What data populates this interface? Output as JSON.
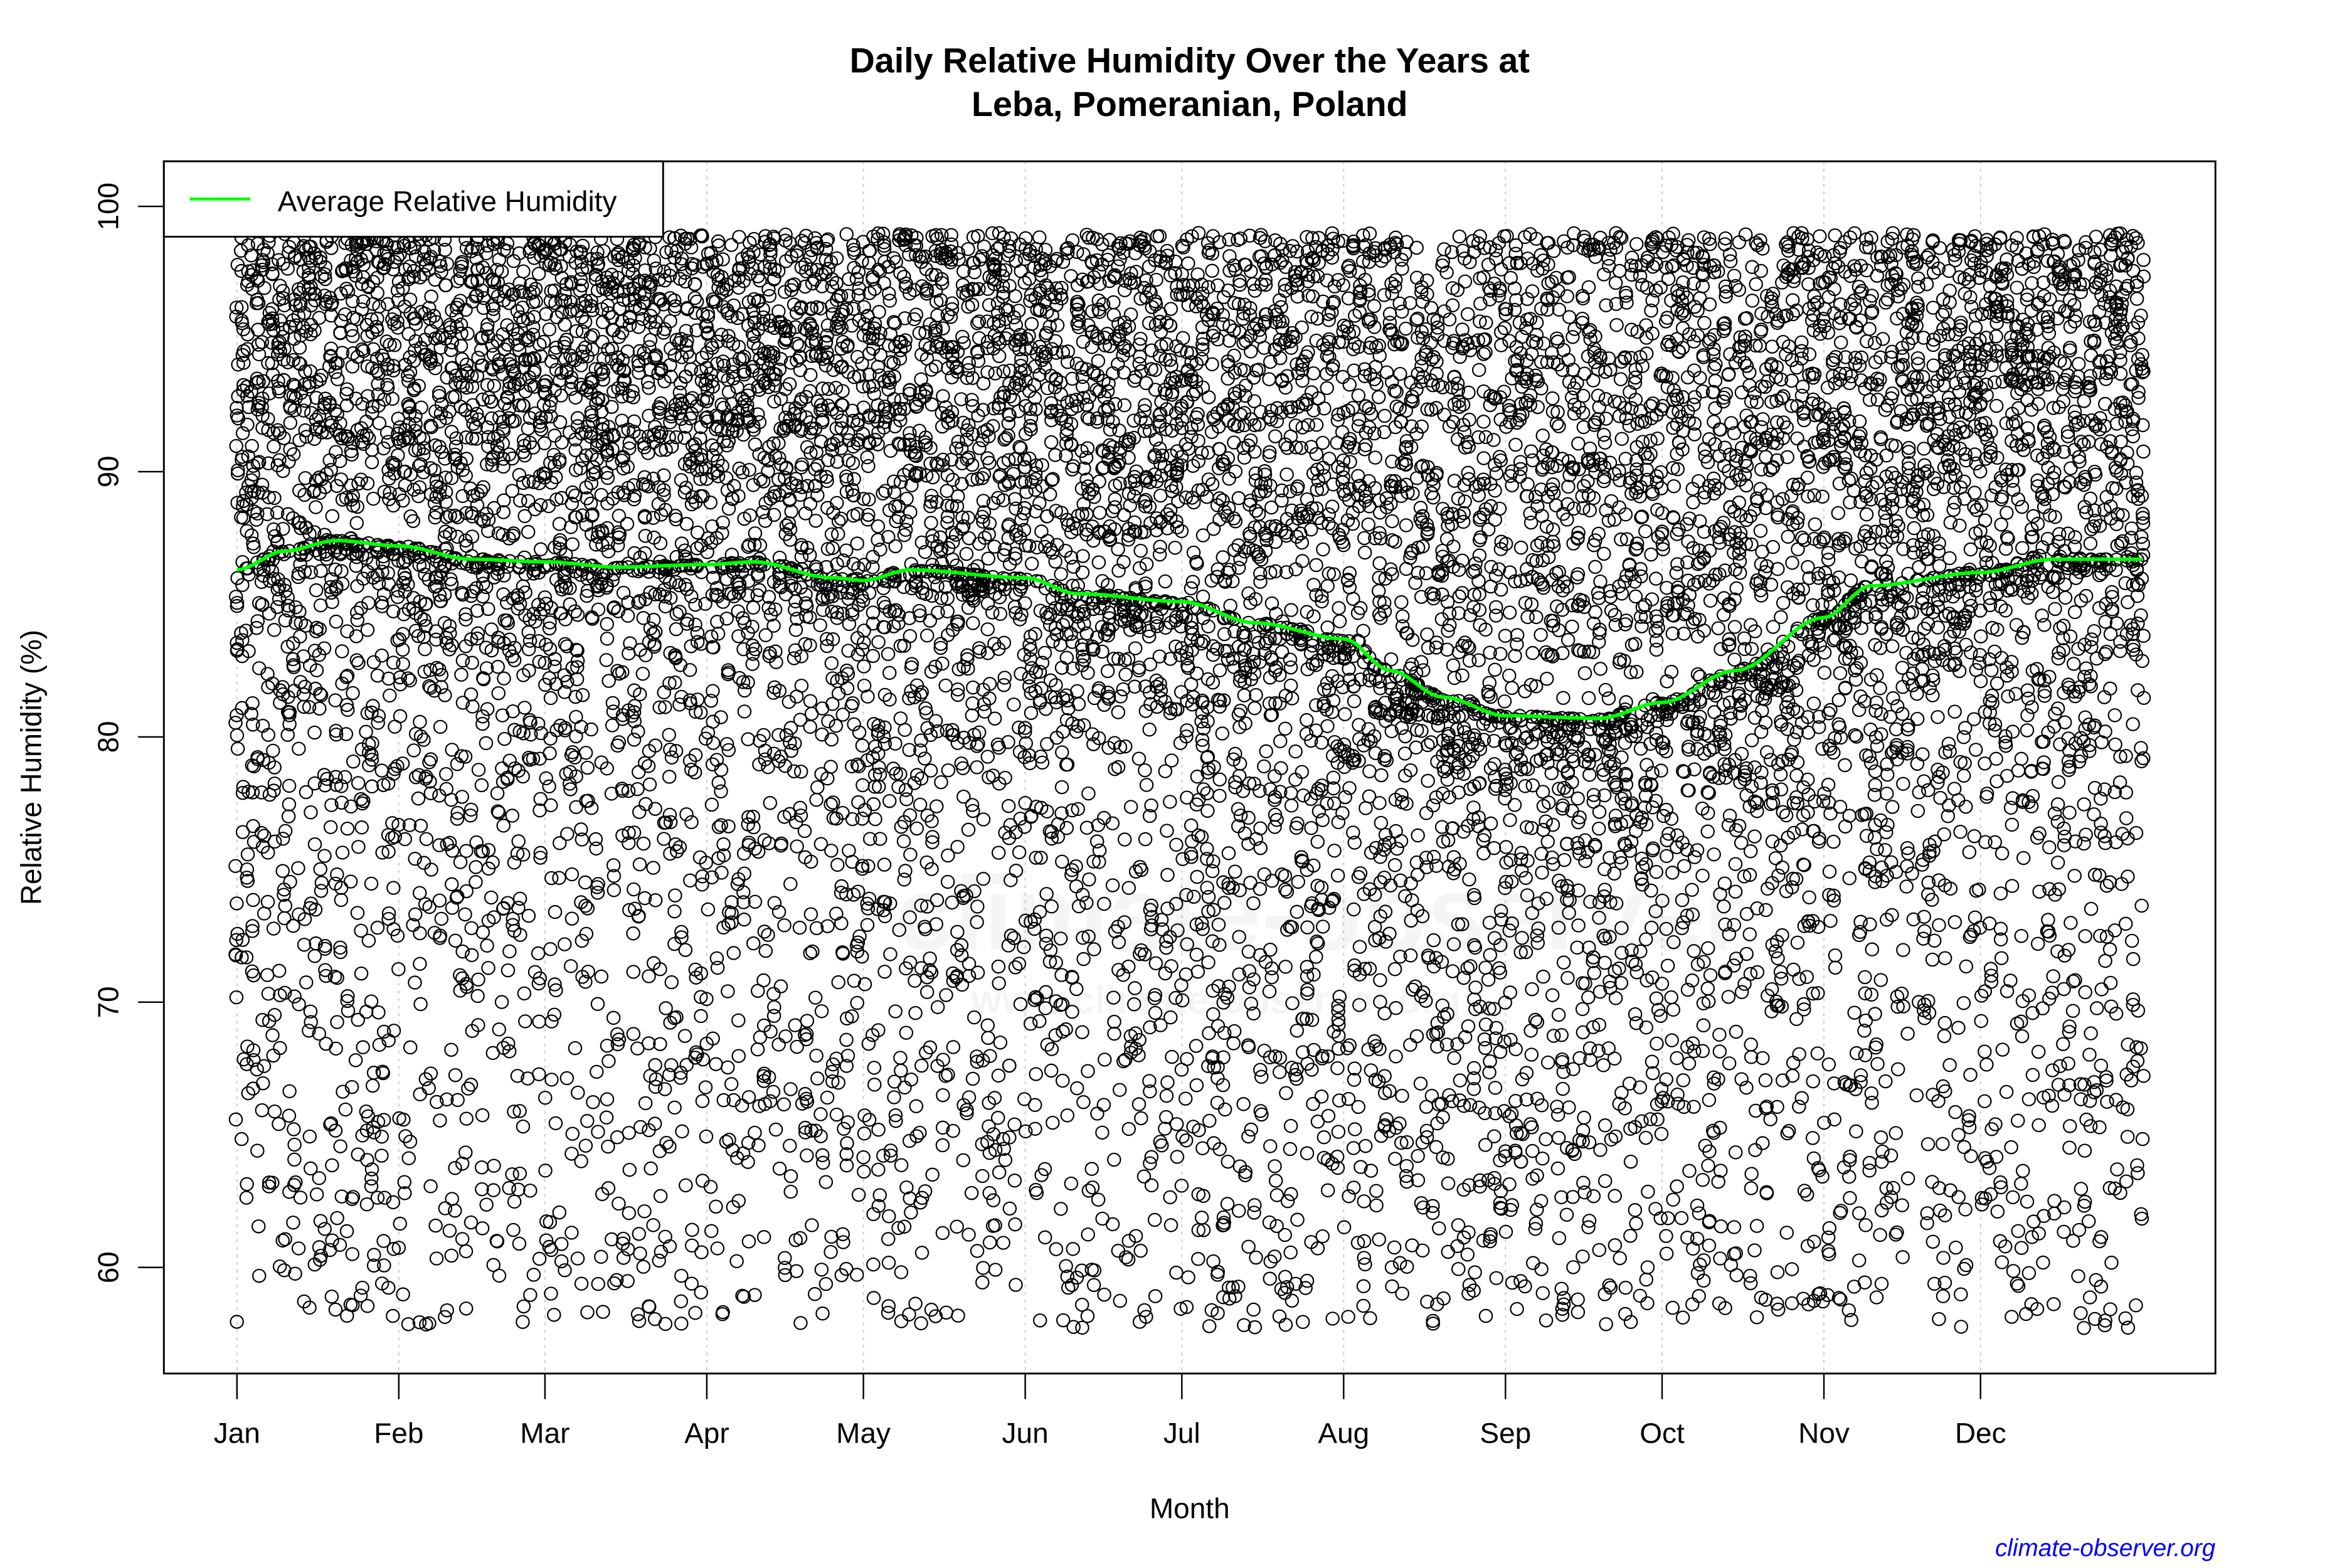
{
  "chart_data": {
    "type": "scatter",
    "title_line1": "Daily Relative Humidity Over the Years at",
    "title_line2": "Leba, Pomeranian, Poland",
    "xlabel": "Month",
    "ylabel": "Relative Humidity  (%)",
    "x_unit": "day of year",
    "xlim": [
      -13,
      380
    ],
    "ylim": [
      56,
      101.7
    ],
    "y_ticks": [
      60,
      70,
      80,
      90,
      100
    ],
    "x_ticks": [
      {
        "label": "Jan",
        "day": 1
      },
      {
        "label": "Feb",
        "day": 32
      },
      {
        "label": "Mar",
        "day": 60
      },
      {
        "label": "Apr",
        "day": 91
      },
      {
        "label": "May",
        "day": 121
      },
      {
        "label": "Jun",
        "day": 152
      },
      {
        "label": "Jul",
        "day": 182
      },
      {
        "label": "Aug",
        "day": 213
      },
      {
        "label": "Sep",
        "day": 244
      },
      {
        "label": "Oct",
        "day": 274
      },
      {
        "label": "Nov",
        "day": 305
      },
      {
        "label": "Dec",
        "day": 335
      }
    ],
    "grid": "vertical dotted at month ticks",
    "legend": {
      "placement": "top-left",
      "entries": [
        {
          "label": "Average Relative Humidity",
          "color": "#00ff00"
        }
      ]
    },
    "scatter": {
      "marker": "open circle",
      "color": "#000000",
      "observed_min": 57.7,
      "observed_max": 100
    },
    "average_series": {
      "name": "Average Relative Humidity",
      "color": "#00ff00",
      "x": [
        1,
        10,
        20,
        32,
        46,
        60,
        74,
        91,
        100,
        115,
        121,
        130,
        152,
        162,
        182,
        196,
        213,
        222,
        232,
        244,
        262,
        274,
        288,
        305,
        314,
        335,
        349,
        366
      ],
      "y": [
        86.3,
        87.0,
        87.4,
        87.2,
        86.7,
        86.6,
        86.4,
        86.5,
        86.6,
        86.0,
        85.9,
        86.3,
        86.0,
        85.4,
        85.1,
        84.3,
        83.7,
        82.5,
        81.5,
        80.8,
        80.7,
        81.3,
        82.5,
        84.5,
        85.7,
        86.2,
        86.7,
        86.7
      ]
    }
  },
  "credit": "climate-observer.org",
  "watermark": {
    "line1": "climate-observer",
    "line2": "www.climate-observer.org"
  }
}
